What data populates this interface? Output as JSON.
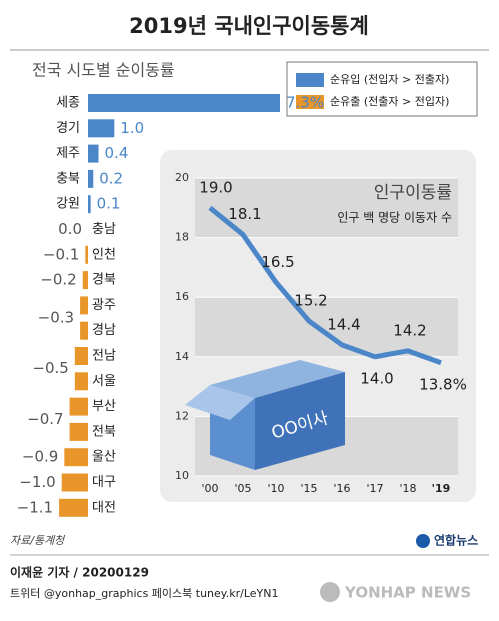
{
  "title": "2019년 국내인구이동통계",
  "chart_data": [
    {
      "type": "hbar",
      "title": "전국 시도별 순이동률",
      "legend": [
        {
          "name": "순유입 (전입자 > 전출자)",
          "color": "#4a86c8"
        },
        {
          "name": "순유출 (전출자 > 전입자)",
          "color": "#e8962a"
        }
      ],
      "categories": [
        "세종",
        "경기",
        "제주",
        "충북",
        "강원",
        "충남",
        "인천",
        "경북",
        "광주",
        "경남",
        "전남",
        "서울",
        "부산",
        "전북",
        "울산",
        "대구",
        "대전"
      ],
      "values": [
        7.3,
        1.0,
        0.4,
        0.2,
        0.1,
        0.0,
        -0.1,
        -0.2,
        -0.3,
        -0.3,
        -0.5,
        -0.5,
        -0.7,
        -0.7,
        -0.9,
        -1.0,
        -1.1
      ],
      "value_labels": [
        "7.3%",
        "1.0",
        "0.4",
        "0.2",
        "0.1",
        "0.0",
        "−0.1",
        "−0.2",
        null,
        "−0.3",
        null,
        "−0.5",
        null,
        "−0.7",
        "−0.9",
        "−1.0",
        "−1.1"
      ]
    },
    {
      "type": "line",
      "title": "인구이동률",
      "subtitle": "인구 백 명당 이동자 수",
      "categories": [
        "'00",
        "'05",
        "'10",
        "'15",
        "'16",
        "'17",
        "'18",
        "'19"
      ],
      "values": [
        19.0,
        18.1,
        16.5,
        15.2,
        14.4,
        14.0,
        14.2,
        13.8
      ],
      "value_labels": [
        "19.0",
        "18.1",
        "16.5",
        "15.2",
        "14.4",
        "14.0",
        "14.2",
        "13.8%"
      ],
      "color": "#4a86c8",
      "ylim": [
        10,
        20
      ],
      "yticks": [
        10,
        12,
        14,
        16,
        18,
        20
      ],
      "grid": true
    }
  ],
  "box_label": "OO이사",
  "source": "자료/통계청",
  "agency": "연합뉴스",
  "byline": "이재윤 기자 / 20200129",
  "social": "트위터 @yonhap_graphics  페이스북 tuney.kr/LeYN1",
  "brand": "YONHAP NEWS"
}
